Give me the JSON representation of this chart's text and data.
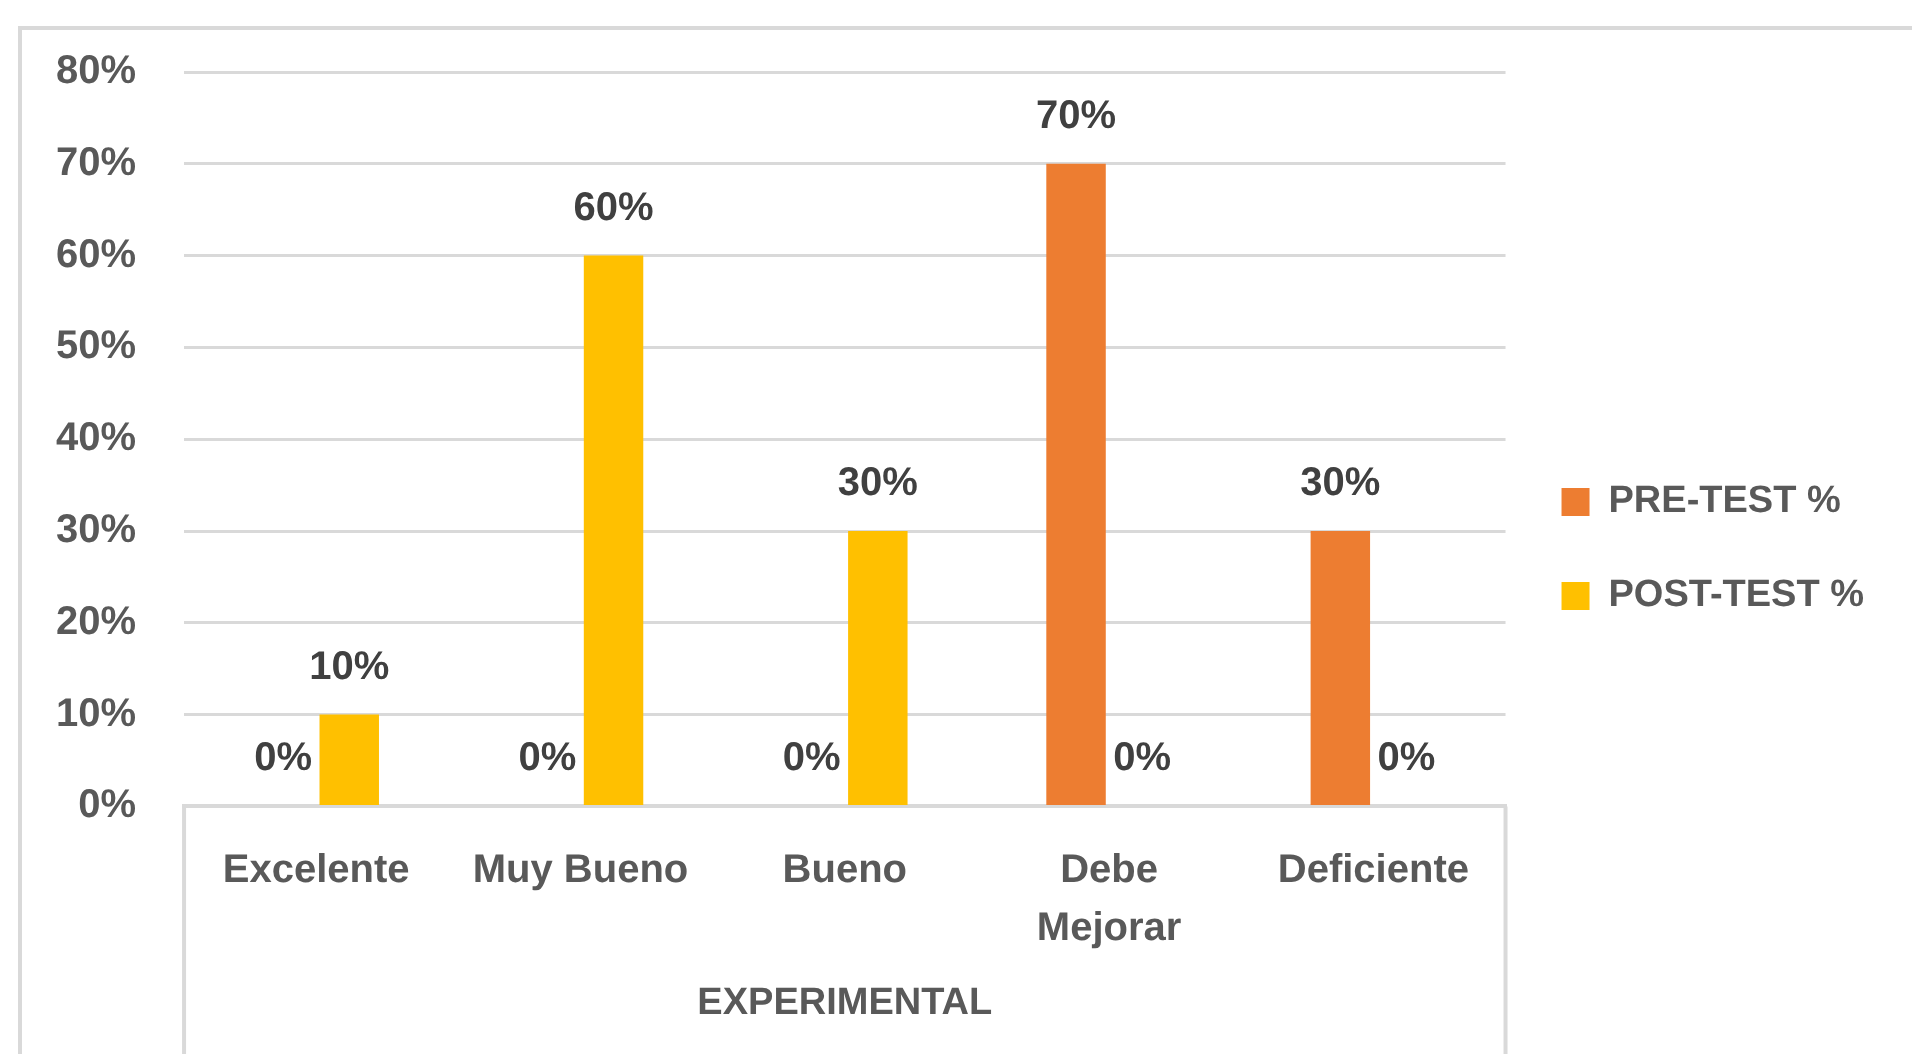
{
  "chart_data": {
    "type": "bar",
    "xlabel": "EXPERIMENTAL",
    "categories": [
      "Excelente",
      "Muy Bueno",
      "Bueno",
      "Debe Mejorar",
      "Deficiente"
    ],
    "series": [
      {
        "name": "PRE-TEST %",
        "color": "#ed7d31",
        "values": [
          0,
          0,
          0,
          70,
          30
        ],
        "value_labels": [
          "0%",
          "0%",
          "0%",
          "70%",
          "30%"
        ]
      },
      {
        "name": "POST-TEST %",
        "color": "#ffc000",
        "values": [
          10,
          60,
          30,
          0,
          0
        ],
        "value_labels": [
          "10%",
          "60%",
          "30%",
          "0%",
          "0%"
        ]
      }
    ],
    "ylim": [
      0,
      80
    ],
    "yticks": [
      {
        "value": 0,
        "label": "0%"
      },
      {
        "value": 10,
        "label": "10%"
      },
      {
        "value": 20,
        "label": "20%"
      },
      {
        "value": 30,
        "label": "30%"
      },
      {
        "value": 40,
        "label": "40%"
      },
      {
        "value": 50,
        "label": "50%"
      },
      {
        "value": 60,
        "label": "60%"
      },
      {
        "value": 70,
        "label": "70%"
      },
      {
        "value": 80,
        "label": "80%"
      }
    ],
    "grid": "y",
    "legend": "right"
  }
}
